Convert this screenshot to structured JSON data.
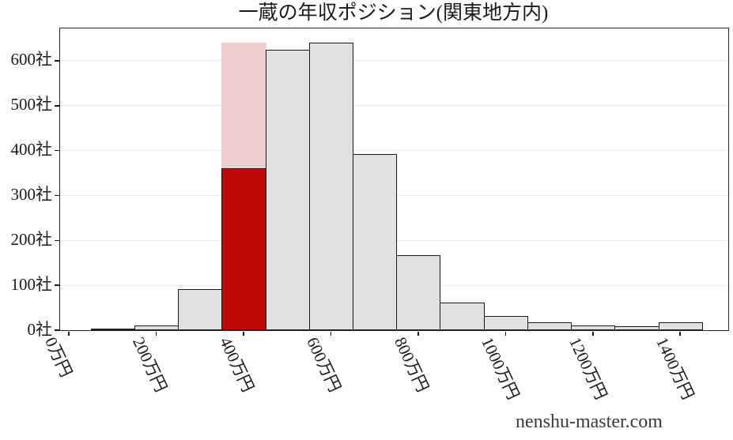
{
  "watermark": {
    "text": "nenshu-master.com"
  },
  "chart_data": {
    "type": "histogram",
    "title": "一蔵の年収ポジション(関東地方内)",
    "xlabel": "",
    "ylabel": "",
    "bin_width": 100,
    "bin_centers": [
      100,
      200,
      300,
      400,
      500,
      600,
      700,
      800,
      900,
      1000,
      1100,
      1200,
      1300,
      1400
    ],
    "values": [
      2,
      10,
      91,
      640,
      624,
      640,
      392,
      168,
      62,
      32,
      17,
      10,
      8,
      17
    ],
    "highlight": {
      "bin_center": 400,
      "bin_label": "400万円",
      "total_value": 640,
      "marker_value": 360
    },
    "x_ticks": {
      "values": [
        0,
        200,
        400,
        600,
        800,
        1000,
        1200,
        1400
      ],
      "labels": [
        "0万円",
        "200万円",
        "400万円",
        "600万円",
        "800万円",
        "1000万円",
        "1200万円",
        "1400万円"
      ]
    },
    "y_ticks": {
      "values": [
        0,
        100,
        200,
        300,
        400,
        500,
        600
      ],
      "labels": [
        "0社",
        "100社",
        "200社",
        "300社",
        "400社",
        "500社",
        "600社"
      ]
    },
    "xlim": [
      -20,
      1510
    ],
    "ylim": [
      0,
      672
    ],
    "grid": "horizontal",
    "legend": "none",
    "colors": {
      "bar_fill": "#dfe1e3",
      "bar_edge": "#1a1a1a",
      "highlight_fill": "#f2cdce",
      "highlight_marker": "#c00a0a",
      "gridline": "#e8e8e8",
      "axis": "#262626",
      "text": "#1a1a1a",
      "watermark": "#3a3a3a"
    }
  }
}
